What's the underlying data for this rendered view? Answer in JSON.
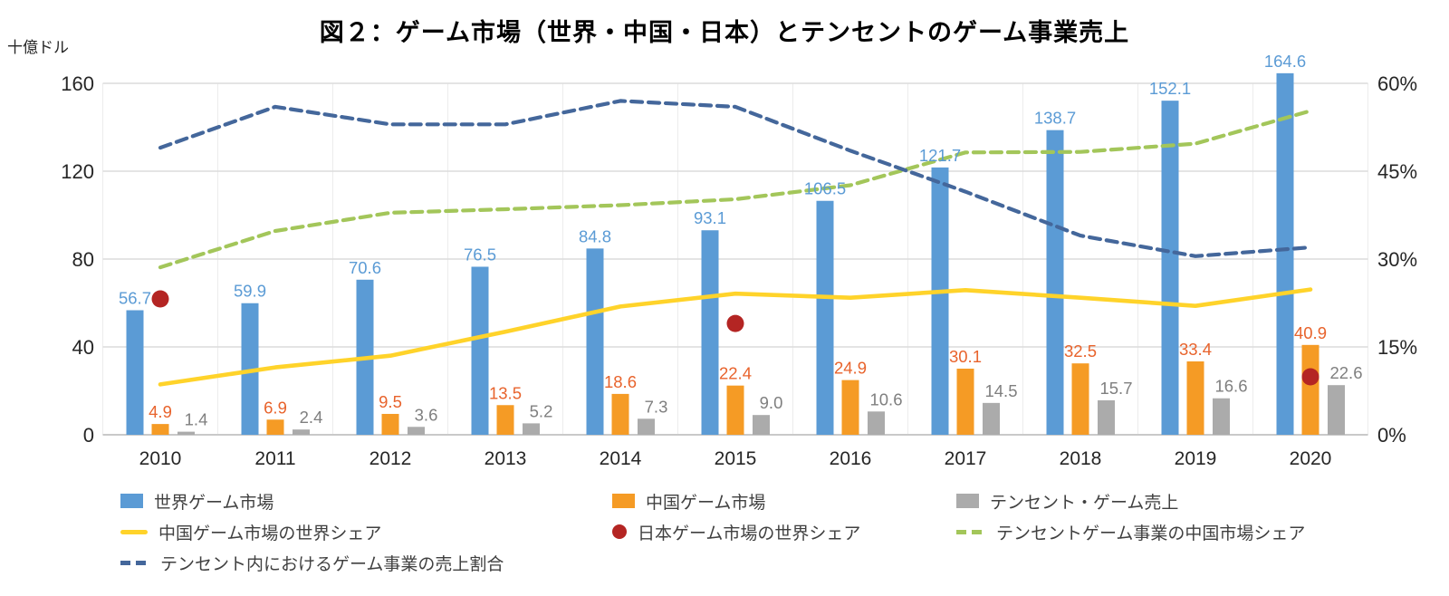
{
  "title": "図２：ゲーム市場（世界・中国・日本）とテンセントのゲーム事業売上",
  "chart_data": {
    "type": "combo-bar-line-scatter",
    "unit_label": "十億ドル",
    "categories": [
      "2010",
      "2011",
      "2012",
      "2013",
      "2014",
      "2015",
      "2016",
      "2017",
      "2018",
      "2019",
      "2020"
    ],
    "left_axis": {
      "ticks": [
        0,
        40,
        80,
        120,
        160
      ],
      "max": 160,
      "grid": true
    },
    "right_axis": {
      "ticks": [
        "0%",
        "15%",
        "30%",
        "45%",
        "60%"
      ],
      "max": 60
    },
    "bar_series": [
      {
        "name": "世界ゲーム市場",
        "slug": "world-game-market",
        "color": "#5B9BD5",
        "label_color": "#5B9BD5",
        "values": [
          56.7,
          59.9,
          70.6,
          76.5,
          84.8,
          93.1,
          106.5,
          121.7,
          138.7,
          152.1,
          164.6
        ]
      },
      {
        "name": "中国ゲーム市場",
        "slug": "china-game-market",
        "color": "#F59B25",
        "label_color": "#E8632C",
        "values": [
          4.9,
          6.9,
          9.5,
          13.5,
          18.6,
          22.4,
          24.9,
          30.1,
          32.5,
          33.4,
          40.9
        ]
      },
      {
        "name": "テンセント・ゲーム売上",
        "slug": "tencent-game-revenue",
        "color": "#ABABAB",
        "label_color": "#7F7F7F",
        "values": [
          1.4,
          2.4,
          3.6,
          5.2,
          7.3,
          9.0,
          10.6,
          14.5,
          15.7,
          16.6,
          22.6
        ]
      }
    ],
    "line_series": [
      {
        "name": "中国ゲーム市場の世界シェア",
        "slug": "china-world-share",
        "color": "#FFD32A",
        "dashed": false,
        "axis": "right",
        "values": [
          8.6,
          11.5,
          13.5,
          17.6,
          21.9,
          24.1,
          23.4,
          24.7,
          23.4,
          22.0,
          24.8
        ]
      },
      {
        "name": "テンセントゲーム事業の中国市場シェア",
        "slug": "tencent-china-market-share",
        "color": "#A3C65A",
        "dashed": true,
        "axis": "right",
        "values": [
          28.6,
          34.8,
          37.9,
          38.5,
          39.2,
          40.2,
          42.6,
          48.2,
          48.3,
          49.7,
          55.3
        ]
      },
      {
        "name": "テンセント内におけるゲーム事業の売上割合",
        "slug": "tencent-internal-game-share",
        "color": "#44679B",
        "dashed": true,
        "axis": "right",
        "values": [
          49.0,
          56.0,
          53.0,
          53.0,
          57.0,
          56.0,
          48.5,
          41.5,
          34.0,
          30.5,
          32.0
        ]
      }
    ],
    "scatter_series": [
      {
        "name": "日本ゲーム市場の世界シェア",
        "slug": "japan-world-share",
        "color": "#B42523",
        "axis": "right",
        "points": [
          {
            "category": "2010",
            "value": 23.2
          },
          {
            "category": "2015",
            "value": 19.0
          },
          {
            "category": "2020",
            "value": 9.9
          }
        ]
      }
    ],
    "legend_position": "bottom"
  },
  "legend": {
    "rows": [
      [
        {
          "label": "世界ゲーム市場",
          "marker": "square",
          "color": "#5B9BD5"
        },
        {
          "label": "中国ゲーム市場",
          "marker": "square",
          "color": "#F59B25"
        },
        {
          "label": "テンセント・ゲーム売上",
          "marker": "square",
          "color": "#ABABAB"
        }
      ],
      [
        {
          "label": "中国ゲーム市場の世界シェア",
          "marker": "line",
          "color": "#FFD32A"
        },
        {
          "label": "日本ゲーム市場の世界シェア",
          "marker": "dot",
          "color": "#B42523"
        },
        {
          "label": "テンセントゲーム事業の中国市場シェア",
          "marker": "dash",
          "color": "#A3C65A"
        }
      ],
      [
        {
          "label": "テンセント内におけるゲーム事業の売上割合",
          "marker": "dash",
          "color": "#44679B"
        }
      ]
    ]
  },
  "colors": {
    "grid": "#DCDCDC",
    "grid_vertical": "#ECECEC",
    "baseline": "#C9C9C9",
    "axis_text": "#262626",
    "legend_text": "#404040"
  }
}
